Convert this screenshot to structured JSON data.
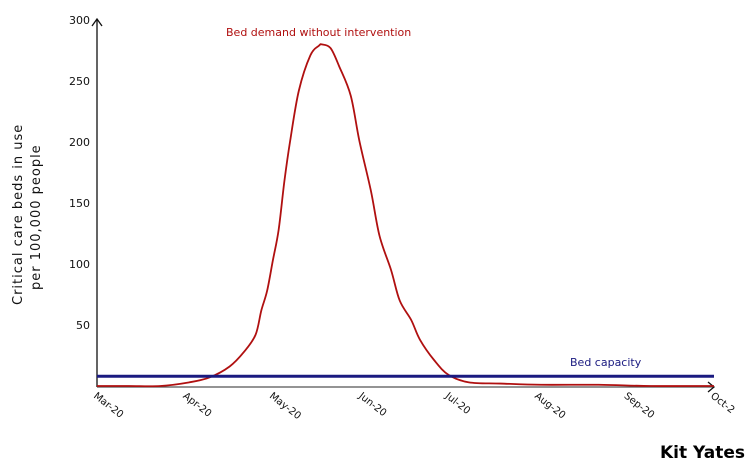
{
  "chart_data": {
    "type": "line",
    "title": "",
    "xlabel": "",
    "ylabel": "Critical care beds in use per 100,000 people",
    "ylabel_lines": [
      "Critical care beds in use",
      "per 100,000 people"
    ],
    "ylim": [
      0,
      300
    ],
    "yticks": [
      50,
      100,
      150,
      200,
      250,
      300
    ],
    "xlim": [
      "2020-03-01",
      "2020-10-01"
    ],
    "xtick_labels": [
      "Mar-20",
      "Apr-20",
      "May-20",
      "Jun-20",
      "Jul-20",
      "Aug-20",
      "Sep-20",
      "Oct-2"
    ],
    "xtick_dates": [
      "2020-03-01",
      "2020-04-01",
      "2020-05-01",
      "2020-06-01",
      "2020-07-01",
      "2020-08-01",
      "2020-09-01",
      "2020-10-01"
    ],
    "grid": false,
    "series": [
      {
        "name": "Bed demand without intervention",
        "color": "#b01010",
        "points": [
          [
            "2020-03-01",
            0
          ],
          [
            "2020-03-12",
            0
          ],
          [
            "2020-03-23",
            0
          ],
          [
            "2020-04-02",
            3
          ],
          [
            "2020-04-09",
            7
          ],
          [
            "2020-04-16",
            16
          ],
          [
            "2020-04-21",
            28
          ],
          [
            "2020-04-25",
            42
          ],
          [
            "2020-04-27",
            62
          ],
          [
            "2020-04-29",
            78
          ],
          [
            "2020-05-01",
            103
          ],
          [
            "2020-05-03",
            128
          ],
          [
            "2020-05-05",
            168
          ],
          [
            "2020-05-07",
            201
          ],
          [
            "2020-05-10",
            242
          ],
          [
            "2020-05-14",
            271
          ],
          [
            "2020-05-17",
            279
          ],
          [
            "2020-05-18",
            280
          ],
          [
            "2020-05-21",
            277
          ],
          [
            "2020-05-24",
            262
          ],
          [
            "2020-05-28",
            238
          ],
          [
            "2020-05-31",
            201
          ],
          [
            "2020-06-04",
            160
          ],
          [
            "2020-06-07",
            123
          ],
          [
            "2020-06-11",
            95
          ],
          [
            "2020-06-14",
            70
          ],
          [
            "2020-06-18",
            54
          ],
          [
            "2020-06-21",
            38
          ],
          [
            "2020-06-26",
            21
          ],
          [
            "2020-07-01",
            9
          ],
          [
            "2020-07-08",
            3
          ],
          [
            "2020-07-19",
            2
          ],
          [
            "2020-08-02",
            1
          ],
          [
            "2020-08-22",
            1
          ],
          [
            "2020-09-09",
            0
          ],
          [
            "2020-10-01",
            0
          ]
        ]
      },
      {
        "name": "Bed capacity",
        "color": "#1a1a80",
        "points": [
          [
            "2020-03-01",
            8
          ],
          [
            "2020-10-01",
            8
          ]
        ]
      }
    ],
    "annotations": {
      "demand_label": "Bed demand without intervention",
      "capacity_label": "Bed capacity"
    },
    "credit": "Kit Yates"
  }
}
